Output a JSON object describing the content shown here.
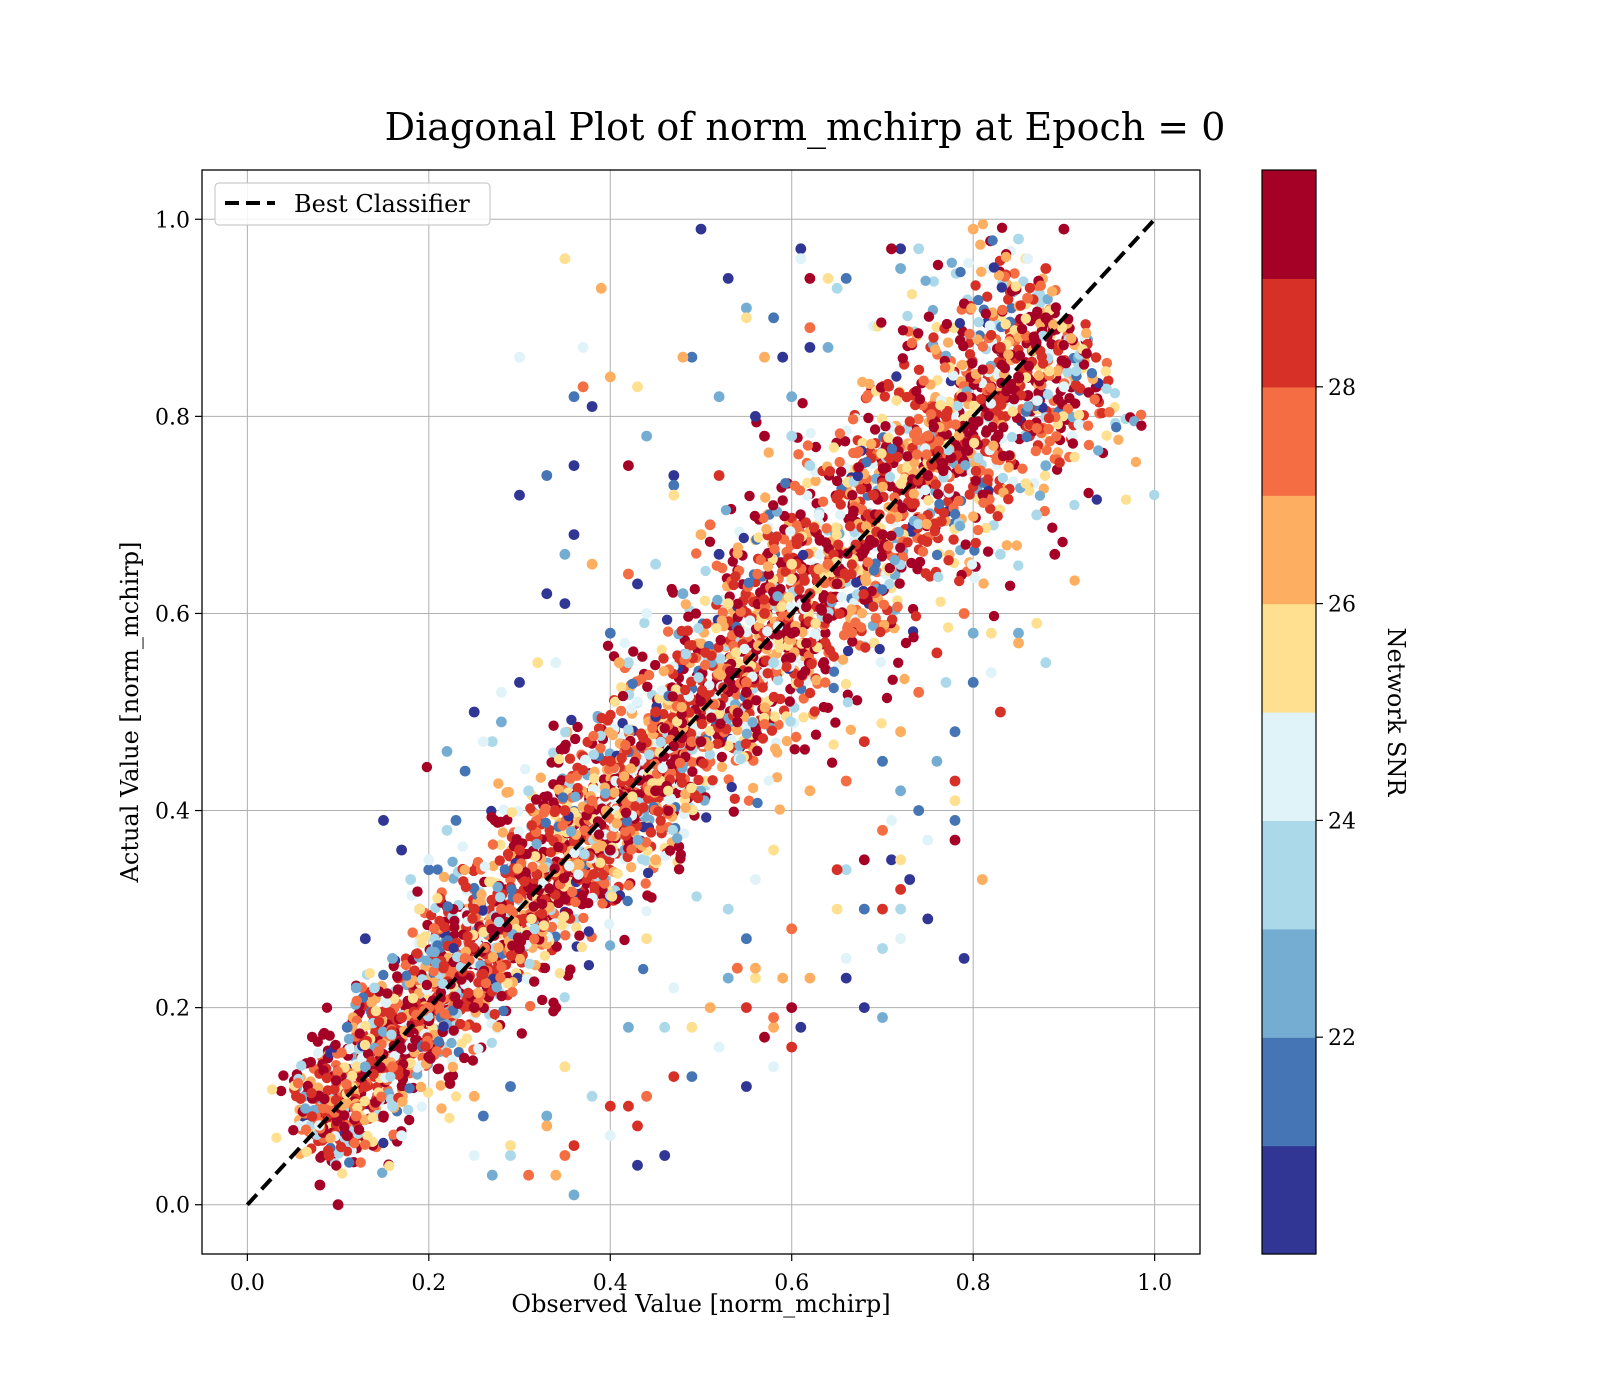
{
  "chart_data": {
    "type": "scatter",
    "title": "Diagonal Plot of norm_mchirp at Epoch = 0",
    "xlabel": "Observed Value [norm_mchirp]",
    "ylabel": "Actual Value [norm_mchirp]",
    "xlim": [
      -0.05,
      1.05
    ],
    "ylim": [
      -0.05,
      1.05
    ],
    "xticks": [
      "0.0",
      "0.2",
      "0.4",
      "0.6",
      "0.8",
      "1.0"
    ],
    "yticks": [
      "0.0",
      "0.2",
      "0.4",
      "0.6",
      "0.8",
      "1.0"
    ],
    "grid": true,
    "legend": {
      "placement": "top-left",
      "entries": [
        "Best Classifier"
      ]
    },
    "reference_line": {
      "name": "Best Classifier",
      "x": [
        0.0,
        1.0
      ],
      "y": [
        0.0,
        1.0
      ],
      "style": "dashed",
      "color": "#000000"
    },
    "colorbar": {
      "label": "Network SNR",
      "range": [
        20.0,
        30.0
      ],
      "ticks": [
        "22",
        "24",
        "26",
        "28"
      ],
      "tick_values": [
        22,
        24,
        26,
        28
      ],
      "colors": [
        "#313695",
        "#4575b4",
        "#74add1",
        "#abd9e9",
        "#e0f3f8",
        "#fee090",
        "#fdae61",
        "#f46d43",
        "#d73027",
        "#a50026"
      ]
    },
    "scatter_series": [
      {
        "snr": 20.5,
        "points": [
          [
            0.5,
            0.99
          ],
          [
            0.53,
            0.94
          ],
          [
            0.61,
            0.97
          ],
          [
            0.3,
            0.72
          ],
          [
            0.36,
            0.75
          ],
          [
            0.33,
            0.62
          ],
          [
            0.47,
            0.74
          ],
          [
            0.15,
            0.39
          ],
          [
            0.17,
            0.36
          ],
          [
            0.43,
            0.04
          ],
          [
            0.55,
            0.12
          ],
          [
            0.79,
            0.25
          ],
          [
            0.75,
            0.29
          ],
          [
            0.61,
            0.18
          ],
          [
            0.73,
            0.33
          ],
          [
            0.56,
            0.8
          ],
          [
            0.62,
            0.87
          ],
          [
            0.52,
            0.66
          ],
          [
            0.25,
            0.5
          ],
          [
            0.3,
            0.53
          ],
          [
            0.46,
            0.05
          ],
          [
            0.66,
            0.23
          ],
          [
            0.71,
            0.35
          ],
          [
            0.36,
            0.68
          ],
          [
            0.35,
            0.61
          ],
          [
            0.43,
            0.63
          ],
          [
            0.13,
            0.27
          ],
          [
            0.38,
            0.81
          ],
          [
            0.59,
            0.86
          ],
          [
            0.72,
            0.97
          ],
          [
            0.68,
            0.2
          ]
        ]
      },
      {
        "snr": 21.5,
        "points": [
          [
            0.49,
            0.86
          ],
          [
            0.33,
            0.74
          ],
          [
            0.36,
            0.82
          ],
          [
            0.24,
            0.44
          ],
          [
            0.23,
            0.39
          ],
          [
            0.2,
            0.34
          ],
          [
            0.47,
            0.73
          ],
          [
            0.58,
            0.9
          ],
          [
            0.66,
            0.94
          ],
          [
            0.8,
            0.53
          ],
          [
            0.78,
            0.48
          ],
          [
            0.74,
            0.4
          ],
          [
            0.7,
            0.45
          ],
          [
            0.55,
            0.27
          ],
          [
            0.49,
            0.13
          ],
          [
            0.29,
            0.12
          ],
          [
            0.26,
            0.09
          ],
          [
            0.11,
            0.18
          ],
          [
            0.4,
            0.58
          ],
          [
            0.68,
            0.3
          ],
          [
            0.78,
            0.39
          ]
        ]
      },
      {
        "snr": 22.5,
        "points": [
          [
            0.55,
            0.91
          ],
          [
            0.52,
            0.82
          ],
          [
            0.44,
            0.78
          ],
          [
            0.35,
            0.66
          ],
          [
            0.28,
            0.49
          ],
          [
            0.22,
            0.46
          ],
          [
            0.19,
            0.3
          ],
          [
            0.16,
            0.25
          ],
          [
            0.13,
            0.14
          ],
          [
            0.64,
            0.87
          ],
          [
            0.72,
            0.95
          ],
          [
            0.76,
            0.45
          ],
          [
            0.8,
            0.58
          ],
          [
            0.7,
            0.19
          ],
          [
            0.72,
            0.42
          ],
          [
            0.53,
            0.23
          ],
          [
            0.42,
            0.18
          ],
          [
            0.33,
            0.09
          ],
          [
            0.27,
            0.03
          ],
          [
            0.36,
            0.01
          ],
          [
            0.12,
            0.22
          ],
          [
            0.88,
            0.75
          ],
          [
            0.85,
            0.58
          ],
          [
            0.6,
            0.82
          ],
          [
            0.48,
            0.62
          ]
        ]
      },
      {
        "snr": 23.5,
        "points": [
          [
            0.45,
            0.65
          ],
          [
            0.27,
            0.47
          ],
          [
            0.22,
            0.38
          ],
          [
            0.18,
            0.33
          ],
          [
            0.14,
            0.22
          ],
          [
            0.65,
            0.93
          ],
          [
            0.74,
            0.97
          ],
          [
            0.6,
            0.78
          ],
          [
            0.83,
            0.66
          ],
          [
            0.77,
            0.53
          ],
          [
            0.72,
            0.3
          ],
          [
            0.66,
            0.34
          ],
          [
            0.53,
            0.3
          ],
          [
            0.46,
            0.18
          ],
          [
            0.38,
            0.11
          ],
          [
            0.29,
            0.05
          ],
          [
            0.16,
            0.1
          ],
          [
            0.85,
            0.98
          ],
          [
            0.7,
            0.26
          ],
          [
            0.58,
            0.55
          ],
          [
            0.31,
            0.42
          ],
          [
            0.42,
            0.55
          ],
          [
            0.87,
            0.7
          ],
          [
            0.62,
            0.75
          ],
          [
            0.88,
            0.55
          ]
        ]
      },
      {
        "snr": 24.5,
        "points": [
          [
            0.3,
            0.86
          ],
          [
            0.37,
            0.87
          ],
          [
            0.61,
            0.96
          ],
          [
            0.9,
            0.83
          ],
          [
            0.26,
            0.47
          ],
          [
            0.2,
            0.35
          ],
          [
            0.28,
            0.52
          ],
          [
            0.72,
            0.27
          ],
          [
            0.66,
            0.25
          ],
          [
            0.52,
            0.16
          ],
          [
            0.4,
            0.07
          ],
          [
            0.25,
            0.05
          ],
          [
            0.17,
            0.07
          ],
          [
            0.82,
            0.54
          ],
          [
            0.75,
            0.37
          ],
          [
            0.56,
            0.33
          ],
          [
            0.44,
            0.6
          ],
          [
            0.63,
            0.7
          ],
          [
            0.34,
            0.55
          ],
          [
            0.71,
            0.39
          ],
          [
            0.47,
            0.22
          ],
          [
            0.58,
            0.14
          ],
          [
            0.86,
            0.96
          ]
        ]
      },
      {
        "snr": 25.5,
        "points": [
          [
            0.35,
            0.96
          ],
          [
            0.64,
            0.94
          ],
          [
            0.55,
            0.9
          ],
          [
            0.43,
            0.83
          ],
          [
            0.47,
            0.72
          ],
          [
            0.32,
            0.55
          ],
          [
            0.19,
            0.3
          ],
          [
            0.72,
            0.35
          ],
          [
            0.87,
            0.59
          ],
          [
            0.56,
            0.23
          ],
          [
            0.49,
            0.18
          ],
          [
            0.35,
            0.14
          ],
          [
            0.29,
            0.06
          ],
          [
            0.82,
            0.58
          ],
          [
            0.78,
            0.41
          ],
          [
            0.65,
            0.3
          ],
          [
            0.58,
            0.36
          ],
          [
            0.6,
            0.65
          ],
          [
            0.53,
            0.61
          ],
          [
            0.44,
            0.27
          ]
        ]
      },
      {
        "snr": 26.5,
        "points": [
          [
            0.39,
            0.93
          ],
          [
            0.4,
            0.84
          ],
          [
            0.48,
            0.86
          ],
          [
            0.38,
            0.65
          ],
          [
            0.57,
            0.86
          ],
          [
            0.81,
            0.33
          ],
          [
            0.59,
            0.23
          ],
          [
            0.56,
            0.24
          ],
          [
            0.58,
            0.18
          ],
          [
            0.51,
            0.2
          ],
          [
            0.62,
            0.23
          ],
          [
            0.34,
            0.03
          ],
          [
            0.25,
            0.11
          ],
          [
            0.33,
            0.08
          ],
          [
            0.85,
            0.57
          ],
          [
            0.72,
            0.48
          ],
          [
            0.62,
            0.42
          ],
          [
            0.45,
            0.35
          ],
          [
            0.41,
            0.55
          ],
          [
            0.5,
            0.68
          ],
          [
            0.8,
            0.99
          ]
        ]
      },
      {
        "snr": 27.5,
        "points": [
          [
            0.37,
            0.83
          ],
          [
            0.42,
            0.64
          ],
          [
            0.51,
            0.69
          ],
          [
            0.62,
            0.89
          ],
          [
            0.58,
            0.19
          ],
          [
            0.44,
            0.11
          ],
          [
            0.31,
            0.03
          ],
          [
            0.35,
            0.05
          ],
          [
            0.54,
            0.24
          ],
          [
            0.6,
            0.28
          ],
          [
            0.79,
            0.6
          ],
          [
            0.74,
            0.52
          ],
          [
            0.66,
            0.43
          ],
          [
            0.7,
            0.38
          ],
          [
            0.2,
            0.2
          ],
          [
            0.16,
            0.14
          ],
          [
            0.12,
            0.09
          ],
          [
            0.38,
            0.41
          ],
          [
            0.49,
            0.47
          ],
          [
            0.55,
            0.53
          ],
          [
            0.64,
            0.65
          ],
          [
            0.75,
            0.78
          ],
          [
            0.86,
            0.92
          ],
          [
            0.28,
            0.3
          ],
          [
            0.24,
            0.25
          ]
        ]
      },
      {
        "snr": 28.5,
        "points": [
          [
            0.52,
            0.74
          ],
          [
            0.7,
            0.3
          ],
          [
            0.72,
            0.32
          ],
          [
            0.6,
            0.16
          ],
          [
            0.65,
            0.34
          ],
          [
            0.55,
            0.2
          ],
          [
            0.47,
            0.13
          ],
          [
            0.43,
            0.08
          ],
          [
            0.4,
            0.1
          ],
          [
            0.36,
            0.06
          ],
          [
            0.42,
            0.1
          ],
          [
            0.78,
            0.43
          ],
          [
            0.83,
            0.5
          ],
          [
            0.76,
            0.56
          ],
          [
            0.68,
            0.47
          ],
          [
            0.3,
            0.36
          ],
          [
            0.25,
            0.3
          ],
          [
            0.17,
            0.19
          ],
          [
            0.13,
            0.12
          ],
          [
            0.09,
            0.05
          ],
          [
            0.45,
            0.5
          ],
          [
            0.57,
            0.6
          ],
          [
            0.62,
            0.62
          ],
          [
            0.69,
            0.72
          ],
          [
            0.77,
            0.8
          ],
          [
            0.83,
            0.87
          ],
          [
            0.88,
            0.95
          ],
          [
            0.35,
            0.4
          ],
          [
            0.4,
            0.45
          ]
        ]
      },
      {
        "snr": 29.5,
        "points": [
          [
            0.42,
            0.75
          ],
          [
            0.57,
            0.78
          ],
          [
            0.71,
            0.97
          ],
          [
            0.62,
            0.94
          ],
          [
            0.89,
            0.66
          ],
          [
            0.9,
            0.99
          ],
          [
            0.78,
            0.37
          ],
          [
            0.57,
            0.17
          ],
          [
            0.6,
            0.2
          ],
          [
            0.68,
            0.35
          ],
          [
            0.34,
            0.2
          ],
          [
            0.11,
            0.07
          ],
          [
            0.08,
            0.02
          ],
          [
            0.1,
            0.0
          ],
          [
            0.15,
            0.09
          ],
          [
            0.2,
            0.15
          ],
          [
            0.25,
            0.2
          ],
          [
            0.3,
            0.26
          ],
          [
            0.35,
            0.31
          ],
          [
            0.4,
            0.36
          ],
          [
            0.45,
            0.42
          ],
          [
            0.5,
            0.47
          ],
          [
            0.55,
            0.52
          ],
          [
            0.6,
            0.58
          ],
          [
            0.65,
            0.63
          ],
          [
            0.7,
            0.68
          ],
          [
            0.75,
            0.74
          ],
          [
            0.8,
            0.79
          ],
          [
            0.85,
            0.84
          ],
          [
            0.88,
            0.9
          ]
        ]
      }
    ],
    "note_density": "dense point cloud concentrated along the diagonal"
  }
}
